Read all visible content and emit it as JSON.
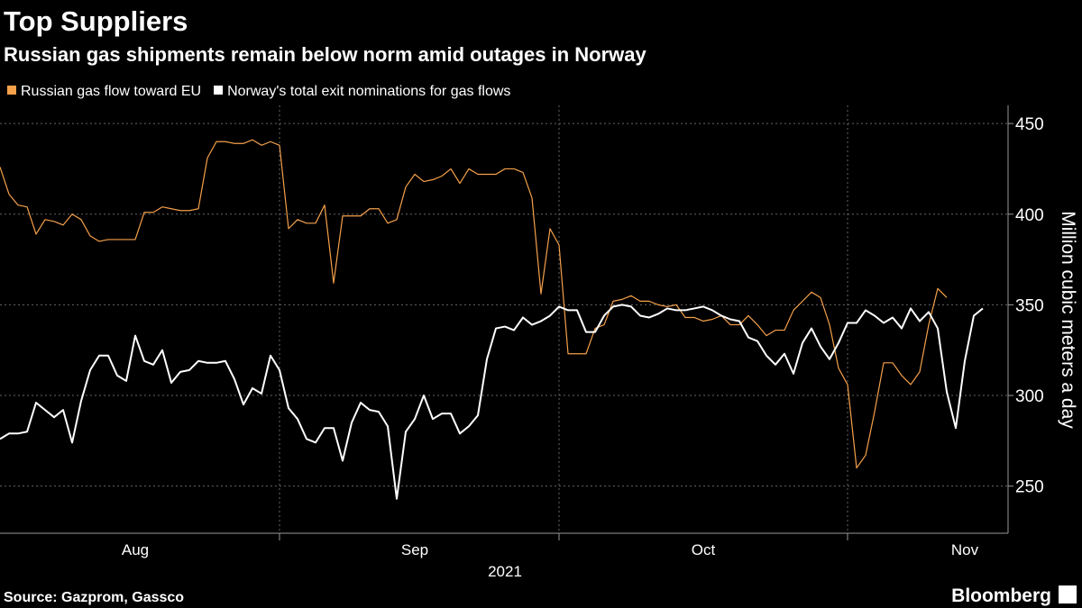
{
  "chart_data": {
    "type": "line",
    "title": "Top Suppliers",
    "subtitle": "Russian gas shipments remain below norm amid outages in Norway",
    "y_label": "Million cubic meters a day",
    "x_label": "2021",
    "source": "Source: Gazprom, Gassco",
    "brand": "Bloomberg",
    "categories": [
      null,
      null,
      null,
      null,
      null,
      null,
      null,
      null,
      null,
      null,
      null,
      null,
      null,
      null,
      null,
      "Aug",
      null,
      null,
      null,
      null,
      null,
      null,
      null,
      null,
      null,
      null,
      null,
      null,
      null,
      null,
      null,
      null,
      null,
      null,
      null,
      null,
      null,
      null,
      null,
      null,
      null,
      null,
      null,
      null,
      null,
      null,
      "Sep",
      null,
      null,
      null,
      null,
      null,
      null,
      null,
      null,
      null,
      null,
      null,
      null,
      null,
      null,
      null,
      null,
      null,
      null,
      null,
      null,
      null,
      null,
      null,
      null,
      null,
      null,
      null,
      null,
      null,
      null,
      null,
      "Oct",
      null,
      null,
      null,
      null,
      null,
      null,
      null,
      null,
      null,
      null,
      null,
      null,
      null,
      null,
      null,
      null,
      null,
      null,
      null,
      null,
      null,
      null,
      null,
      null,
      null,
      null,
      null,
      null,
      "Nov",
      null,
      null
    ],
    "series": [
      {
        "name": "Russian gas flow toward EU",
        "color": "#f5a04a",
        "width": 1.2,
        "values": [
          426,
          411,
          405,
          404,
          389,
          397,
          396,
          394,
          400,
          397,
          388,
          385,
          386,
          386,
          386,
          386,
          401,
          401,
          404,
          403,
          402,
          402,
          403,
          431,
          440,
          440,
          439,
          439,
          441,
          438,
          440,
          438,
          392,
          397,
          395,
          395,
          405,
          362,
          399,
          399,
          399,
          403,
          403,
          395,
          397,
          415,
          422,
          418,
          419,
          421,
          425,
          417,
          425,
          422,
          422,
          422,
          425,
          425,
          423,
          409,
          356,
          392,
          383,
          323,
          323,
          323,
          337,
          339,
          352,
          353,
          355,
          352,
          352,
          350,
          349,
          350,
          343,
          343,
          341,
          342,
          344,
          339,
          339,
          344,
          339,
          333,
          336,
          336,
          347,
          352,
          357,
          354,
          339,
          315,
          306,
          260,
          267,
          291,
          318,
          318,
          311,
          306,
          313,
          339,
          359,
          354,
          null,
          null,
          null,
          null
        ]
      },
      {
        "name": "Norway's total exit nominations for gas flows",
        "color": "#ffffff",
        "width": 2,
        "values": [
          276,
          279,
          279,
          280,
          296,
          292,
          288,
          292,
          274,
          297,
          314,
          322,
          322,
          311,
          308,
          333,
          319,
          317,
          325,
          307,
          313,
          314,
          319,
          318,
          318,
          319,
          309,
          295,
          304,
          301,
          322,
          314,
          293,
          287,
          276,
          274,
          282,
          282,
          264,
          285,
          296,
          292,
          291,
          283,
          243,
          280,
          287,
          300,
          287,
          290,
          290,
          279,
          283,
          289,
          320,
          337,
          338,
          336,
          343,
          339,
          341,
          344,
          349,
          347,
          347,
          335,
          335,
          344,
          349,
          350,
          349,
          344,
          343,
          345,
          348,
          347,
          347,
          348,
          349,
          347,
          344,
          342,
          341,
          332,
          330,
          322,
          317,
          323,
          312,
          329,
          337,
          327,
          320,
          329,
          340,
          340,
          347,
          344,
          340,
          343,
          337,
          348,
          341,
          346,
          337,
          302,
          282,
          319,
          344,
          348
        ]
      }
    ],
    "ylim": [
      224,
      460
    ],
    "yticks": [
      250,
      300,
      350,
      400,
      450
    ],
    "grid": true,
    "legend": "top-left"
  }
}
